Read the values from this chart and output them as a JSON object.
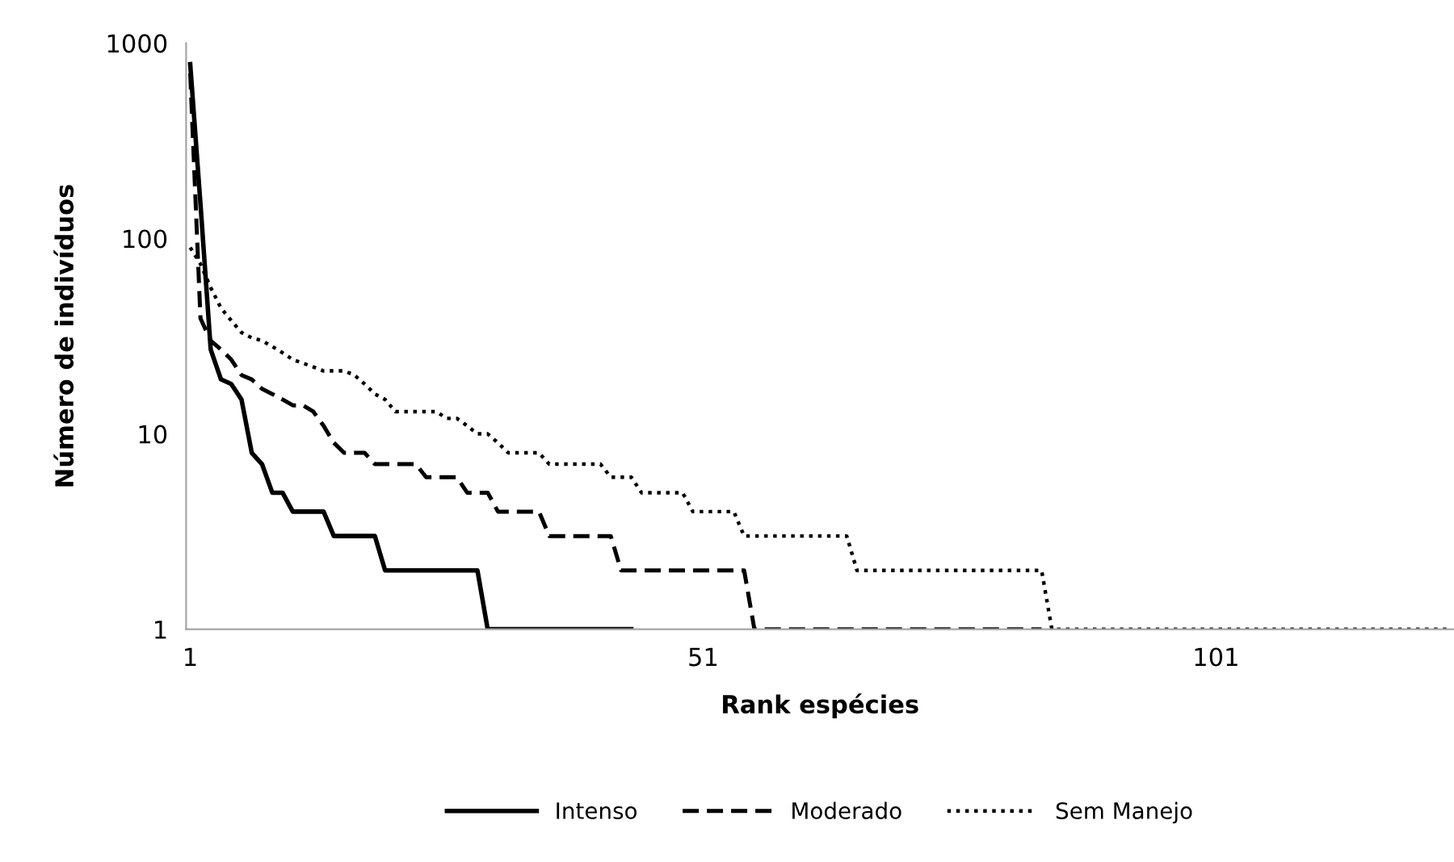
{
  "chart_data": {
    "type": "line",
    "xlabel": "Rank espécies",
    "ylabel": "Número de indivíduos",
    "log": "y",
    "xlim": [
      0.6,
      124.2
    ],
    "xticks": [
      1,
      51,
      101
    ],
    "ylim": [
      1,
      1000
    ],
    "yticks": [
      1,
      10,
      100,
      1000
    ],
    "grid": false,
    "legend": "bottom",
    "marker": "none",
    "x": [
      1,
      2,
      3,
      4,
      5,
      6,
      7,
      8,
      9,
      10,
      11,
      12,
      13,
      14,
      15,
      16,
      17,
      18,
      19,
      20,
      21,
      22,
      23,
      24,
      25,
      26,
      27,
      28,
      29,
      30,
      31,
      32,
      33,
      34,
      35,
      36,
      37,
      38,
      39,
      40,
      41,
      42,
      43,
      44,
      45,
      46,
      47,
      48,
      49,
      50,
      51,
      52,
      53,
      54,
      55,
      56,
      57,
      58,
      59,
      60,
      61,
      62,
      63,
      64,
      65,
      66,
      67,
      68,
      69,
      70,
      71,
      72,
      73,
      74,
      75,
      76,
      77,
      78,
      79,
      80,
      81,
      82,
      83,
      84,
      85,
      86,
      87,
      88,
      89,
      90,
      91,
      92,
      93,
      94,
      95,
      96,
      97,
      98,
      99,
      100,
      101,
      102,
      103,
      104,
      105,
      106,
      107,
      108,
      109,
      110,
      111,
      112,
      113,
      114,
      115,
      116,
      117,
      118,
      119,
      120,
      121,
      122,
      123,
      124
    ],
    "series": [
      {
        "name": "Intenso",
        "color": "#000000",
        "x": [
          1,
          2,
          3,
          4,
          5,
          6,
          7,
          8,
          9,
          10,
          11,
          12,
          13,
          14,
          15,
          16,
          17,
          18,
          19,
          20,
          21,
          22,
          23,
          24,
          25,
          26,
          27,
          28,
          29,
          30,
          31,
          32,
          33,
          34,
          35,
          36,
          37,
          38,
          39,
          40,
          41,
          42,
          43,
          44
        ],
        "line_style": "solid",
        "values": [
          780,
          150,
          27,
          19,
          18,
          15,
          8,
          7,
          5,
          5,
          4,
          4,
          4,
          4,
          3,
          3,
          3,
          3,
          3,
          2,
          2,
          2,
          2,
          2,
          2,
          2,
          2,
          2,
          2,
          1,
          1,
          1,
          1,
          1,
          1,
          1,
          1,
          1,
          1,
          1,
          1,
          1,
          1,
          1
        ]
      },
      {
        "name": "Moderado",
        "color": "#000000",
        "x": [
          1,
          2,
          3,
          4,
          5,
          6,
          7,
          8,
          9,
          10,
          11,
          12,
          13,
          14,
          15,
          16,
          17,
          18,
          19,
          20,
          21,
          22,
          23,
          24,
          25,
          26,
          27,
          28,
          29,
          30,
          31,
          32,
          33,
          34,
          35,
          36,
          37,
          38,
          39,
          40,
          41,
          42,
          43,
          44,
          45,
          46,
          47,
          48,
          49,
          50,
          51,
          52,
          53,
          54,
          55,
          56,
          57,
          58,
          59,
          60,
          61,
          62,
          63,
          64,
          65,
          66,
          67,
          68,
          69,
          70,
          71,
          72,
          73,
          74,
          75,
          76,
          77,
          78,
          79,
          80,
          81,
          82,
          83,
          84
        ],
        "line_style": "dashed",
        "values": [
          700,
          39,
          30,
          27,
          24,
          20,
          19,
          17,
          16,
          15,
          14,
          14,
          13,
          11,
          9,
          8,
          8,
          8,
          7,
          7,
          7,
          7,
          7,
          6,
          6,
          6,
          6,
          5,
          5,
          5,
          4,
          4,
          4,
          4,
          4,
          3,
          3,
          3,
          3,
          3,
          3,
          3,
          2,
          2,
          2,
          2,
          2,
          2,
          2,
          2,
          2,
          2,
          2,
          2,
          2,
          1,
          1,
          1,
          1,
          1,
          1,
          1,
          1,
          1,
          1,
          1,
          1,
          1,
          1,
          1,
          1,
          1,
          1,
          1,
          1,
          1,
          1,
          1,
          1,
          1,
          1,
          1,
          1,
          1
        ]
      },
      {
        "name": "Sem Manejo",
        "color": "#000000",
        "line_style": "dotted",
        "values": [
          90,
          74,
          56,
          44,
          38,
          33,
          31,
          30,
          28,
          26,
          24,
          23,
          22,
          21,
          21,
          21,
          20,
          18,
          16,
          15,
          13,
          13,
          13,
          13,
          13,
          12,
          12,
          11,
          10,
          10,
          9,
          8,
          8,
          8,
          8,
          7,
          7,
          7,
          7,
          7,
          7,
          6,
          6,
          6,
          5,
          5,
          5,
          5,
          5,
          4,
          4,
          4,
          4,
          4,
          3,
          3,
          3,
          3,
          3,
          3,
          3,
          3,
          3,
          3,
          3,
          2,
          2,
          2,
          2,
          2,
          2,
          2,
          2,
          2,
          2,
          2,
          2,
          2,
          2,
          2,
          2,
          2,
          2,
          2,
          1,
          1,
          1,
          1,
          1,
          1,
          1,
          1,
          1,
          1,
          1,
          1,
          1,
          1,
          1,
          1,
          1,
          1,
          1,
          1,
          1,
          1,
          1,
          1,
          1,
          1,
          1,
          1,
          1,
          1,
          1,
          1,
          1,
          1,
          1,
          1,
          1,
          1,
          1,
          1
        ]
      }
    ]
  }
}
